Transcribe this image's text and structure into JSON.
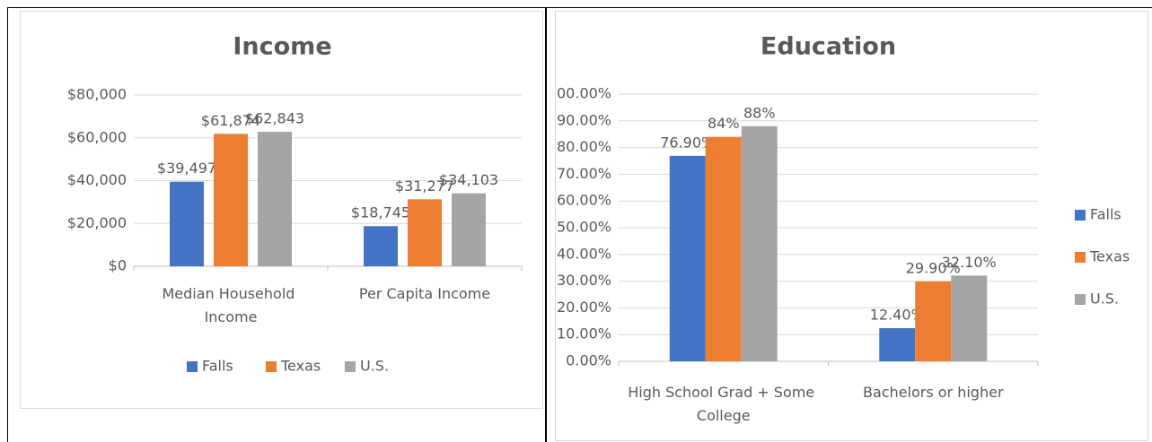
{
  "chart_data": [
    {
      "type": "bar",
      "title": "Income",
      "categories": [
        "Median Household Income",
        "Per Capita Income"
      ],
      "series": [
        {
          "name": "Falls",
          "color": "#4472c4",
          "values": [
            39497,
            18745
          ],
          "value_labels": [
            "$39,497",
            "$18,745"
          ]
        },
        {
          "name": "Texas",
          "color": "#ed7d31",
          "values": [
            61874,
            31277
          ],
          "value_labels": [
            "$61,874",
            "$31,277"
          ]
        },
        {
          "name": "U.S.",
          "color": "#a5a5a5",
          "values": [
            62843,
            34103
          ],
          "value_labels": [
            "$62,843",
            "$34,103"
          ]
        }
      ],
      "ylim": [
        0,
        80000
      ],
      "yticks": [
        {
          "value": 0,
          "label": "$0"
        },
        {
          "value": 20000,
          "label": "$20,000"
        },
        {
          "value": 40000,
          "label": "$40,000"
        },
        {
          "value": 60000,
          "label": "$60,000"
        },
        {
          "value": 80000,
          "label": "$80,000"
        }
      ],
      "grid": true,
      "legend": "bottom"
    },
    {
      "type": "bar",
      "title": "Education",
      "categories": [
        "High School Grad + Some College",
        "Bachelors or higher"
      ],
      "series": [
        {
          "name": "Falls",
          "color": "#4472c4",
          "values": [
            76.9,
            12.4
          ],
          "value_labels": [
            "76.90%",
            "12.40%"
          ]
        },
        {
          "name": "Texas",
          "color": "#ed7d31",
          "values": [
            84,
            29.9
          ],
          "value_labels": [
            "84%",
            "29.90%"
          ]
        },
        {
          "name": "U.S.",
          "color": "#a5a5a5",
          "values": [
            88,
            32.1
          ],
          "value_labels": [
            "88%",
            "32.10%"
          ]
        }
      ],
      "ylim": [
        0,
        100
      ],
      "yticks": [
        {
          "value": 0,
          "label": "0.00%"
        },
        {
          "value": 10,
          "label": "10.00%"
        },
        {
          "value": 20,
          "label": "20.00%"
        },
        {
          "value": 30,
          "label": "30.00%"
        },
        {
          "value": 40,
          "label": "40.00%"
        },
        {
          "value": 50,
          "label": "50.00%"
        },
        {
          "value": 60,
          "label": "60.00%"
        },
        {
          "value": 70,
          "label": "70.00%"
        },
        {
          "value": 80,
          "label": "80.00%"
        },
        {
          "value": 90,
          "label": "90.00%"
        },
        {
          "value": 100,
          "label": "100.00%"
        }
      ],
      "grid": true,
      "legend": "right"
    }
  ]
}
